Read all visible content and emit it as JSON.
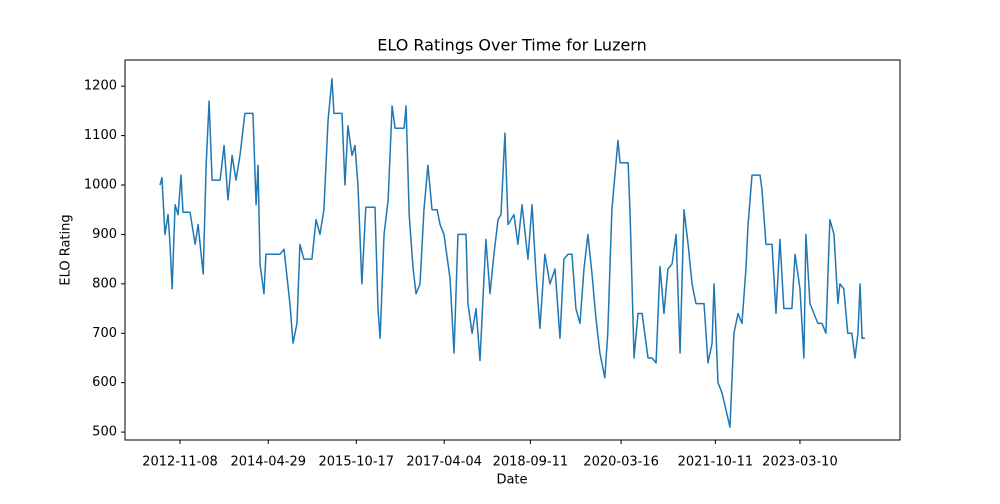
{
  "chart_data": {
    "type": "line",
    "title": "ELO Ratings Over Time for Luzern",
    "x_label": "Date",
    "y_label": "ELO Rating",
    "x": [
      "2012-07-09",
      "2012-07-21",
      "2012-08-08",
      "2012-08-27",
      "2012-09-08",
      "2012-09-21",
      "2012-10-09",
      "2012-10-27",
      "2012-11-14",
      "2012-11-26",
      "2013-01-08",
      "2013-02-08",
      "2013-02-26",
      "2013-03-29",
      "2013-04-16",
      "2013-05-04",
      "2013-05-22",
      "2013-07-10",
      "2013-08-03",
      "2013-08-27",
      "2013-09-21",
      "2013-10-15",
      "2013-11-08",
      "2013-12-08",
      "2014-01-26",
      "2014-02-14",
      "2014-02-26",
      "2014-03-10",
      "2014-04-03",
      "2014-04-15",
      "2014-05-10",
      "2014-07-10",
      "2014-08-03",
      "2014-09-08",
      "2014-09-27",
      "2014-10-21",
      "2014-11-08",
      "2014-12-02",
      "2015-01-20",
      "2015-02-14",
      "2015-03-10",
      "2015-04-03",
      "2015-04-28",
      "2015-05-22",
      "2015-06-03",
      "2015-07-22",
      "2015-08-09",
      "2015-08-27",
      "2015-09-21",
      "2015-10-09",
      "2015-10-27",
      "2015-11-20",
      "2015-12-14",
      "2016-02-08",
      "2016-02-26",
      "2016-03-10",
      "2016-04-03",
      "2016-04-28",
      "2016-05-22",
      "2016-06-09",
      "2016-08-03",
      "2016-08-15",
      "2016-09-03",
      "2016-09-27",
      "2016-10-15",
      "2016-11-08",
      "2016-12-02",
      "2016-12-26",
      "2017-01-20",
      "2017-02-20",
      "2017-03-10",
      "2017-04-03",
      "2017-05-10",
      "2017-06-03",
      "2017-06-27",
      "2017-08-15",
      "2017-08-27",
      "2017-09-21",
      "2017-10-15",
      "2017-11-08",
      "2017-12-14",
      "2018-01-08",
      "2018-02-01",
      "2018-02-26",
      "2018-03-16",
      "2018-04-09",
      "2018-04-28",
      "2018-06-03",
      "2018-06-27",
      "2018-07-22",
      "2018-08-27",
      "2018-09-21",
      "2018-10-15",
      "2018-11-08",
      "2018-12-08",
      "2019-01-08",
      "2019-02-08",
      "2019-03-10",
      "2019-04-03",
      "2019-04-28",
      "2019-05-22",
      "2019-06-15",
      "2019-07-10",
      "2019-08-03",
      "2019-08-27",
      "2019-09-21",
      "2019-10-15",
      "2019-11-08",
      "2019-12-08",
      "2019-12-26",
      "2020-01-20",
      "2020-02-26",
      "2020-03-10",
      "2020-04-28",
      "2020-05-10",
      "2020-06-03",
      "2020-06-27",
      "2020-07-22",
      "2020-08-27",
      "2020-09-21",
      "2020-10-15",
      "2020-11-08",
      "2020-12-02",
      "2020-12-26",
      "2021-01-20",
      "2021-02-14",
      "2021-03-10",
      "2021-04-03",
      "2021-04-28",
      "2021-05-22",
      "2021-06-15",
      "2021-08-03",
      "2021-08-27",
      "2021-09-21",
      "2021-10-03",
      "2021-10-27",
      "2021-11-20",
      "2022-01-08",
      "2022-02-01",
      "2022-02-26",
      "2022-03-22",
      "2022-04-15",
      "2022-04-28",
      "2022-05-22",
      "2022-07-10",
      "2022-07-22",
      "2022-08-15",
      "2022-09-21",
      "2022-10-15",
      "2022-11-08",
      "2022-12-02",
      "2023-01-20",
      "2023-02-08",
      "2023-03-10",
      "2023-04-03",
      "2023-04-15",
      "2023-05-10",
      "2023-06-03",
      "2023-06-27",
      "2023-07-22",
      "2023-08-15",
      "2023-09-08",
      "2023-10-03",
      "2023-10-27",
      "2023-11-08",
      "2023-12-02",
      "2023-12-26",
      "2024-01-20",
      "2024-02-08",
      "2024-02-26",
      "2024-03-10",
      "2024-03-22",
      "2024-04-09"
    ],
    "series": [
      {
        "name": "Luzern",
        "color": "#1f77b4",
        "values": [
          1000,
          1015,
          900,
          940,
          880,
          790,
          960,
          940,
          1020,
          945,
          945,
          880,
          920,
          820,
          1040,
          1170,
          1010,
          1010,
          1080,
          970,
          1060,
          1010,
          1060,
          1145,
          1145,
          960,
          1040,
          840,
          780,
          860,
          860,
          860,
          870,
          760,
          680,
          720,
          880,
          850,
          850,
          930,
          900,
          950,
          1130,
          1215,
          1145,
          1145,
          1000,
          1120,
          1060,
          1080,
          1000,
          800,
          955,
          955,
          750,
          690,
          900,
          970,
          1160,
          1115,
          1115,
          1160,
          940,
          830,
          780,
          800,
          950,
          1040,
          950,
          950,
          920,
          900,
          810,
          660,
          900,
          900,
          760,
          700,
          750,
          645,
          890,
          780,
          860,
          930,
          940,
          1105,
          920,
          940,
          880,
          960,
          850,
          960,
          820,
          710,
          860,
          800,
          830,
          690,
          850,
          860,
          860,
          750,
          720,
          830,
          900,
          820,
          730,
          660,
          610,
          700,
          950,
          1090,
          1045,
          1045,
          940,
          650,
          740,
          740,
          650,
          650,
          640,
          835,
          740,
          830,
          840,
          900,
          660,
          950,
          880,
          800,
          760,
          760,
          640,
          680,
          800,
          600,
          580,
          510,
          700,
          740,
          720,
          830,
          920,
          1020,
          1020,
          990,
          880,
          880,
          740,
          890,
          750,
          750,
          860,
          790,
          650,
          900,
          760,
          740,
          720,
          720,
          700,
          930,
          900,
          760,
          800,
          790,
          700,
          700,
          650,
          700,
          800,
          690,
          690
        ]
      }
    ],
    "xlim": [
      "2011-12-09",
      "2024-11-08"
    ],
    "xticks": [
      "2012-11-08",
      "2014-04-29",
      "2015-10-17",
      "2017-04-04",
      "2018-09-11",
      "2020-03-16",
      "2021-10-11",
      "2023-03-10"
    ],
    "ylim": [
      484,
      1253
    ],
    "yticks": [
      500,
      600,
      700,
      800,
      900,
      1000,
      1100,
      1200
    ]
  }
}
